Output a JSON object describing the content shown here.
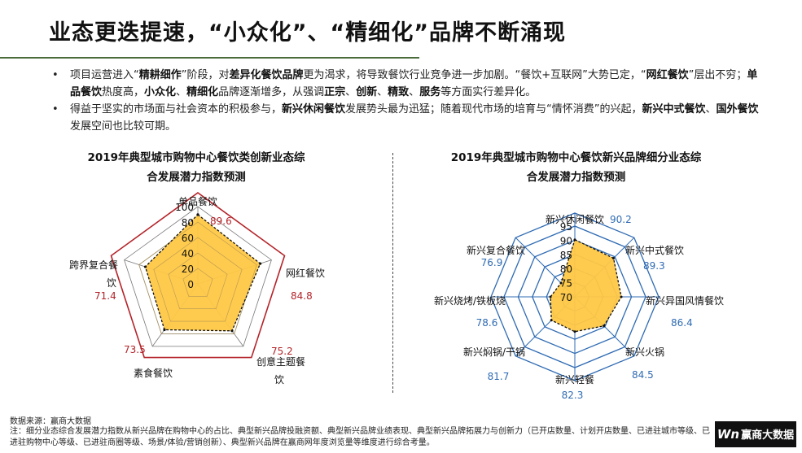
{
  "title": "业态更迭提速，“小众化”、“精细化”品牌不断涌现",
  "bullets": [
    [
      {
        "t": "项目运营进入“",
        "b": false
      },
      {
        "t": "精耕细作",
        "b": true
      },
      {
        "t": "”阶段，对",
        "b": false
      },
      {
        "t": "差异化餐饮品牌",
        "b": true
      },
      {
        "t": "更为渴求，将导致餐饮行业竞争进一步加剧。“餐饮+互联网”大势已定，“",
        "b": false
      },
      {
        "t": "网红餐饮",
        "b": true
      },
      {
        "t": "”层出不穷；",
        "b": false
      },
      {
        "t": "单品餐饮",
        "b": true
      },
      {
        "t": "热度高，",
        "b": false
      },
      {
        "t": "小众化",
        "b": true
      },
      {
        "t": "、",
        "b": false
      },
      {
        "t": "精细化",
        "b": true
      },
      {
        "t": "品牌逐渐增多，从强调",
        "b": false
      },
      {
        "t": "正宗",
        "b": true
      },
      {
        "t": "、",
        "b": false
      },
      {
        "t": "创新",
        "b": true
      },
      {
        "t": "、",
        "b": false
      },
      {
        "t": "精致",
        "b": true
      },
      {
        "t": "、",
        "b": false
      },
      {
        "t": "服务",
        "b": true
      },
      {
        "t": "等方面实行差异化。",
        "b": false
      }
    ],
    [
      {
        "t": "得益于坚实的市场面与社会资本的积极参与，",
        "b": false
      },
      {
        "t": "新兴休闲餐饮",
        "b": true
      },
      {
        "t": "发展势头最为迅猛；随着现代市场的培育与“情怀消费”的兴起，",
        "b": false
      },
      {
        "t": "新兴中式餐饮",
        "b": true
      },
      {
        "t": "、",
        "b": false
      },
      {
        "t": "国外餐饮",
        "b": true
      },
      {
        "t": "发展空间也比较可期。",
        "b": false
      }
    ]
  ],
  "chart_data": [
    {
      "type": "radar",
      "title_lines": [
        "2019年典型城市购物中心餐饮类创新业态综",
        "合发展潜力指数预测"
      ],
      "categories": [
        [
          "单品餐饮"
        ],
        [
          "网红餐饮"
        ],
        [
          "创意主题餐",
          "饮"
        ],
        [
          "素食餐饮"
        ],
        [
          "跨界复合餐",
          "饮"
        ]
      ],
      "values": [
        89.6,
        84.8,
        75.2,
        73.5,
        71.4
      ],
      "value_labels": [
        "89.6",
        "84.8",
        "75.2",
        "73.5",
        "71.4"
      ],
      "rmin": 0,
      "rmax": 100,
      "ticks": [
        "0",
        "20",
        "40",
        "60",
        "80",
        "100"
      ],
      "tick_values": [
        0,
        20,
        40,
        60,
        80,
        100
      ],
      "colors": {
        "fill": "#ffc845",
        "outer": "#b42329",
        "inner": "#777777",
        "line": "#111111",
        "value_text": "#b42329"
      }
    },
    {
      "type": "radar",
      "title_lines": [
        "2019年典型城市购物中心餐饮新兴品牌细分业态综",
        "合发展潜力指数预测"
      ],
      "categories": [
        [
          "新兴休闲餐饮"
        ],
        [
          "新兴中式餐饮"
        ],
        [
          "新兴异国风情餐饮"
        ],
        [
          "新兴火锅"
        ],
        [
          "新兴轻餐"
        ],
        [
          "新兴焖锅/干锅"
        ],
        [
          "新兴烧烤/铁板烧"
        ],
        [
          "新兴复合餐饮"
        ]
      ],
      "values": [
        90.2,
        89.3,
        86.4,
        84.5,
        82.3,
        81.7,
        78.6,
        76.9
      ],
      "value_labels": [
        "90.2",
        "89.3",
        "86.4",
        "84.5",
        "82.3",
        "81.7",
        "78.6",
        "76.9"
      ],
      "rmin": 70,
      "rmax": 95,
      "ticks": [
        "70",
        "75",
        "80",
        "85",
        "90",
        "95"
      ],
      "tick_values": [
        70,
        75,
        80,
        85,
        90,
        95
      ],
      "colors": {
        "fill": "#ffc845",
        "grid": "#2f6bb3",
        "line": "#111111",
        "value_text": "#2f6bb3"
      }
    }
  ],
  "source": "数据来源：赢商大数据",
  "note": "注：细分业态综合发展潜力指数从新兴品牌在购物中心的占比、典型新兴品牌投融资额、典型新兴品牌业绩表现、典型新兴品牌拓展力与创新力（已开店数量、计划开店数量、已进驻城市等级、已进驻购物中心等级、已进驻商圈等级、场景/体验/营销创新）、典型新兴品牌在赢商网年度浏览量等维度进行综合考量。",
  "logo": {
    "mark": "Wn",
    "text": "赢商大数据"
  }
}
